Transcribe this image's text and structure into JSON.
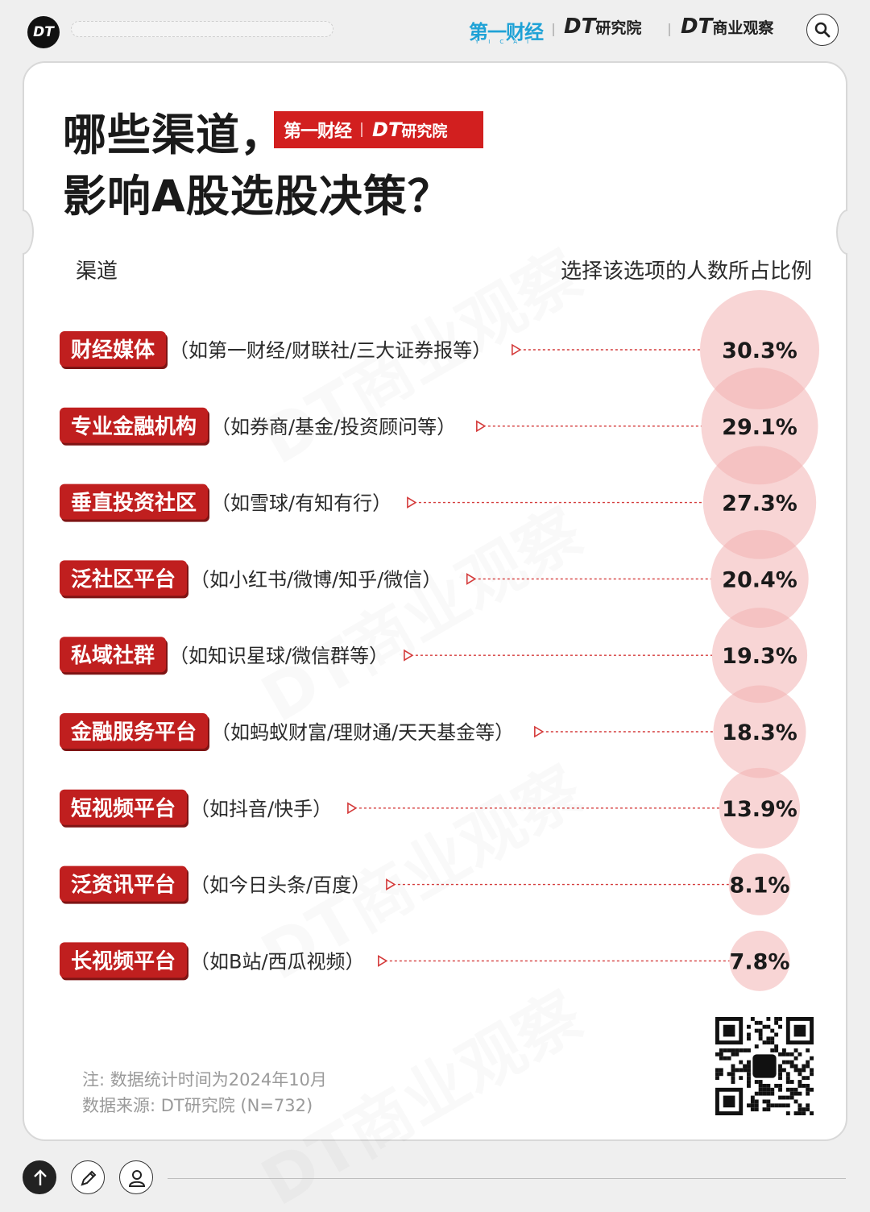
{
  "header": {
    "logo_text": "DT",
    "brand_yicai": "第一财经",
    "brand_yicai_sub": "YICAI",
    "brand_dt_research_prefix": "DT",
    "brand_dt_research_suffix": "研究院",
    "brand_dt_observe_prefix": "DT",
    "brand_dt_observe_suffix": "商业观察",
    "search_icon": "search-icon"
  },
  "title": {
    "line1": "哪些渠道，",
    "line2": "影响A股选股决策？",
    "badge_left": "第一财经",
    "badge_right_prefix": "DT",
    "badge_right_suffix": "研究院"
  },
  "columns": {
    "left": "渠道",
    "right": "选择该选项的人数所占比例"
  },
  "chart_data": {
    "type": "bar",
    "categories": [
      "财经媒体",
      "专业金融机构",
      "垂直投资社区",
      "泛社区平台",
      "私域社群",
      "金融服务平台",
      "短视频平台",
      "泛资讯平台",
      "长视频平台"
    ],
    "descriptions": [
      "（如第一财经/财联社/三大证券报等）",
      "（如券商/基金/投资顾问等）",
      "（如雪球/有知有行）",
      "（如小红书/微博/知乎/微信）",
      "（如知识星球/微信群等）",
      "（如蚂蚁财富/理财通/天天基金等）",
      "（如抖音/快手）",
      "（如今日头条/百度）",
      "（如B站/西瓜视频）"
    ],
    "values": [
      30.3,
      29.1,
      27.3,
      20.4,
      19.3,
      18.3,
      13.9,
      8.1,
      7.8
    ],
    "labels": [
      "30.3%",
      "29.1%",
      "27.3%",
      "20.4%",
      "19.3%",
      "18.3%",
      "13.9%",
      "8.1%",
      "7.8%"
    ],
    "unit": "%",
    "tag_color": "#c01f1f",
    "bubble_color": "#f3b3b3",
    "leader_color": "#d43a3a"
  },
  "notes": {
    "line1": "注: 数据统计时间为2024年10月",
    "line2": "数据来源: DT研究院 (N=732)"
  },
  "watermark": "DT商业观察",
  "toolbar": {
    "up_icon": "arrow-up-icon",
    "edit_icon": "pencil-icon",
    "user_icon": "user-icon"
  }
}
